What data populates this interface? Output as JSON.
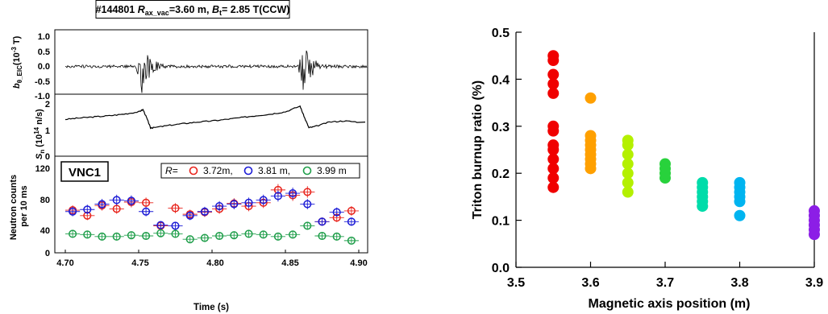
{
  "colors": {
    "r372": "#e8231b",
    "r381": "#1a1ad6",
    "r399": "#1f9e4a"
  },
  "chart_data": [
    {
      "panel": "magnetic-fluctuation",
      "type": "line",
      "title": "#144801 R_ax_vac=3.60 m, B_t= 2.85 T(CCW)",
      "title_parts": [
        "#144801 ",
        "R",
        "ax_vac",
        "=3.60 m, ",
        "B",
        "t",
        "= 2.85 T(CCW)"
      ],
      "ylabel": "b_θ_EIC(10^-3 T)",
      "ylabel_parts": [
        "b",
        "θ_EIC",
        "(10",
        "-3",
        " T)"
      ],
      "ylim": [
        -1.0,
        1.0
      ],
      "yticks": [
        "1.0",
        "0.5",
        "0.0",
        "-0.5",
        "-1.0"
      ],
      "xlim": [
        4.7,
        4.9
      ],
      "bursts": [
        4.752,
        4.862
      ],
      "burst_amplitude": 0.95,
      "baseline_amplitude": 0.05
    },
    {
      "panel": "neutron-rate",
      "type": "line",
      "ylabel": "S_n (10^14 n/s)",
      "ylabel_parts": [
        "S",
        "n",
        " (10",
        "14",
        " n/s)"
      ],
      "ylim": [
        0,
        2.3
      ],
      "yticks": [
        "2",
        "1",
        "0"
      ],
      "x": [
        4.7,
        4.71,
        4.72,
        4.73,
        4.74,
        4.75,
        4.753,
        4.756,
        4.758,
        4.76,
        4.77,
        4.78,
        4.79,
        4.8,
        4.81,
        4.82,
        4.83,
        4.84,
        4.85,
        4.86,
        4.863,
        4.866,
        4.87,
        4.88,
        4.89,
        4.9
      ],
      "y": [
        1.62,
        1.68,
        1.73,
        1.78,
        1.85,
        1.95,
        2.05,
        1.6,
        1.25,
        1.25,
        1.35,
        1.43,
        1.5,
        1.55,
        1.62,
        1.7,
        1.78,
        1.85,
        1.95,
        2.2,
        1.7,
        1.25,
        1.3,
        1.5,
        1.55,
        1.5
      ]
    },
    {
      "panel": "neutron-counts",
      "type": "scatter",
      "title": "VNC1",
      "ylabel": "Neutron counts per 10 ms",
      "ylabel_lines": [
        "Neutron counts",
        "per 10 ms"
      ],
      "xlabel": "Time (s)",
      "xlim": [
        4.7,
        4.9
      ],
      "xticks": [
        "4.70",
        "4.75",
        "4.80",
        "4.85",
        "4.90"
      ],
      "ylim": [
        0,
        125
      ],
      "yticks": [
        "120",
        "80",
        "40",
        "0"
      ],
      "legend_prefix": "R=",
      "x": [
        4.705,
        4.715,
        4.725,
        4.735,
        4.745,
        4.755,
        4.765,
        4.775,
        4.785,
        4.795,
        4.805,
        4.815,
        4.825,
        4.835,
        4.845,
        4.855,
        4.865,
        4.875,
        4.885,
        4.895
      ],
      "series": [
        {
          "name": "3.72m,",
          "color_key": "r372",
          "values": [
            63,
            55,
            70,
            65,
            75,
            74,
            40,
            66,
            57,
            60,
            65,
            73,
            69,
            74,
            93,
            85,
            90,
            46,
            52,
            62
          ]
        },
        {
          "name": "3.81 m,",
          "color_key": "r381",
          "values": [
            61,
            64,
            72,
            78,
            77,
            61,
            41,
            40,
            55,
            61,
            69,
            72,
            74,
            78,
            84,
            88,
            72,
            46,
            60,
            46
          ]
        },
        {
          "name": "3.99 m",
          "color_key": "r399",
          "values": [
            28,
            27,
            24,
            24,
            26,
            25,
            29,
            28,
            20,
            22,
            25,
            26,
            28,
            27,
            24,
            27,
            40,
            25,
            24,
            18
          ]
        }
      ]
    },
    {
      "panel": "triton-burnup",
      "type": "scatter",
      "xlabel": "Magnetic axis position (m)",
      "ylabel": "Triton burnup ratio (%)",
      "xlim": [
        3.5,
        3.9
      ],
      "ylim": [
        0.0,
        0.5
      ],
      "xticks": [
        "3.5",
        "3.6",
        "3.7",
        "3.8",
        "3.9"
      ],
      "yticks": [
        "0.5",
        "0.4",
        "0.3",
        "0.2",
        "0.1",
        "0.0"
      ],
      "groups": [
        {
          "x": 3.55,
          "color": "#f00000",
          "values": [
            0.17,
            0.19,
            0.21,
            0.23,
            0.25,
            0.26,
            0.29,
            0.3,
            0.37,
            0.39,
            0.41,
            0.44,
            0.45
          ]
        },
        {
          "x": 3.6,
          "color": "#ffa000",
          "values": [
            0.21,
            0.22,
            0.23,
            0.24,
            0.25,
            0.26,
            0.27,
            0.28,
            0.36
          ]
        },
        {
          "x": 3.65,
          "color": "#b4f000",
          "values": [
            0.16,
            0.18,
            0.2,
            0.22,
            0.24,
            0.26,
            0.27
          ]
        },
        {
          "x": 3.7,
          "color": "#28d23c",
          "values": [
            0.19,
            0.2,
            0.21,
            0.22
          ]
        },
        {
          "x": 3.75,
          "color": "#00dcaa",
          "values": [
            0.13,
            0.14,
            0.15,
            0.16,
            0.17,
            0.18
          ]
        },
        {
          "x": 3.8,
          "color": "#00b4f0",
          "values": [
            0.11,
            0.14,
            0.15,
            0.16,
            0.17,
            0.18
          ]
        },
        {
          "x": 3.9,
          "color": "#8c1ee6",
          "values": [
            0.07,
            0.08,
            0.09,
            0.1,
            0.11,
            0.12
          ]
        }
      ]
    }
  ]
}
